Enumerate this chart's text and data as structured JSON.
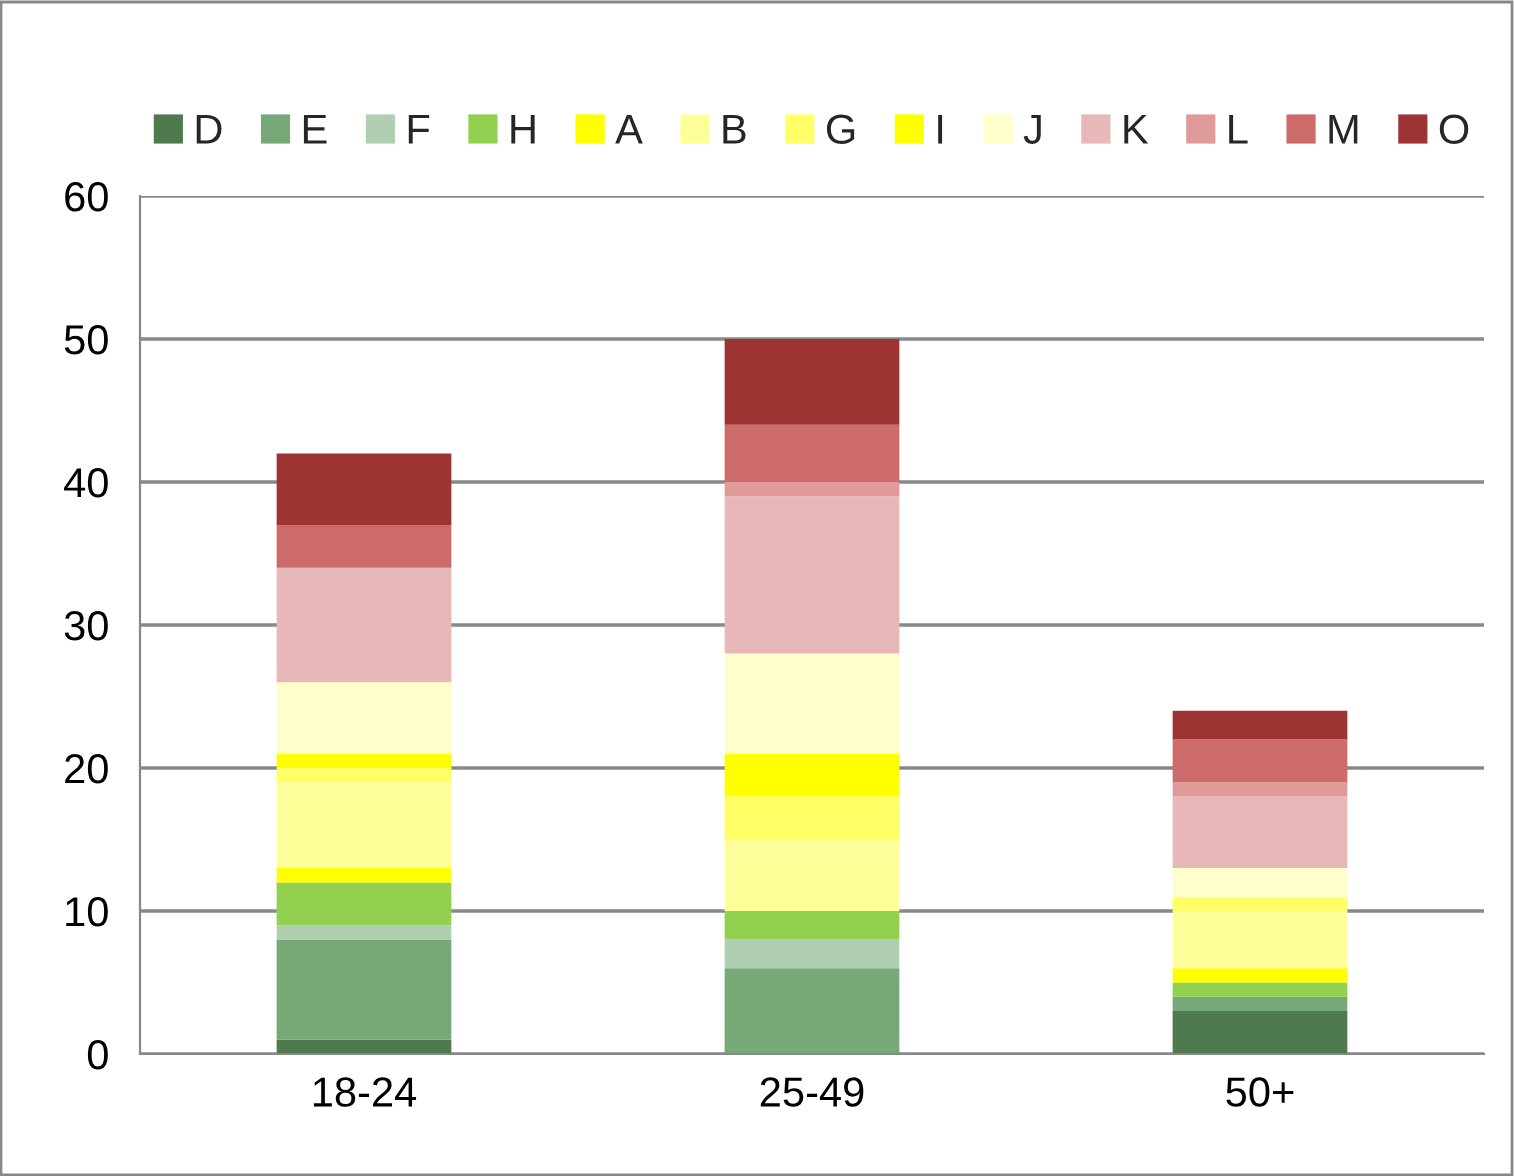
{
  "chart_data": {
    "type": "bar",
    "stacked": true,
    "categories": [
      "18-24",
      "25-49",
      "50+"
    ],
    "series": [
      {
        "name": "D",
        "color": "#4e7a4e",
        "values": [
          1,
          0,
          3
        ]
      },
      {
        "name": "E",
        "color": "#77a877",
        "values": [
          7,
          6,
          1
        ]
      },
      {
        "name": "F",
        "color": "#b0cfb0",
        "values": [
          1,
          2,
          0
        ]
      },
      {
        "name": "H",
        "color": "#92d050",
        "values": [
          3,
          2,
          1
        ]
      },
      {
        "name": "A",
        "color": "#ffff00",
        "values": [
          1,
          0,
          1
        ]
      },
      {
        "name": "B",
        "color": "#ffff99",
        "values": [
          6,
          5,
          4
        ]
      },
      {
        "name": "G",
        "color": "#ffff66",
        "values": [
          1,
          3,
          1
        ]
      },
      {
        "name": "I",
        "color": "#ffff00",
        "values": [
          1,
          3,
          0
        ]
      },
      {
        "name": "J",
        "color": "#ffffcc",
        "values": [
          5,
          7,
          2
        ]
      },
      {
        "name": "K",
        "color": "#e6b8b7",
        "values": [
          8,
          11,
          5
        ]
      },
      {
        "name": "L",
        "color": "#e09a9a",
        "values": [
          0,
          1,
          1
        ]
      },
      {
        "name": "M",
        "color": "#cd6a6a",
        "values": [
          3,
          4,
          3
        ]
      },
      {
        "name": "O",
        "color": "#9e3333",
        "values": [
          5,
          6,
          2
        ]
      }
    ],
    "ylim": [
      0,
      60
    ],
    "yticks": [
      0,
      10,
      20,
      30,
      40,
      50,
      60
    ],
    "grid": "y",
    "legend": "top"
  }
}
